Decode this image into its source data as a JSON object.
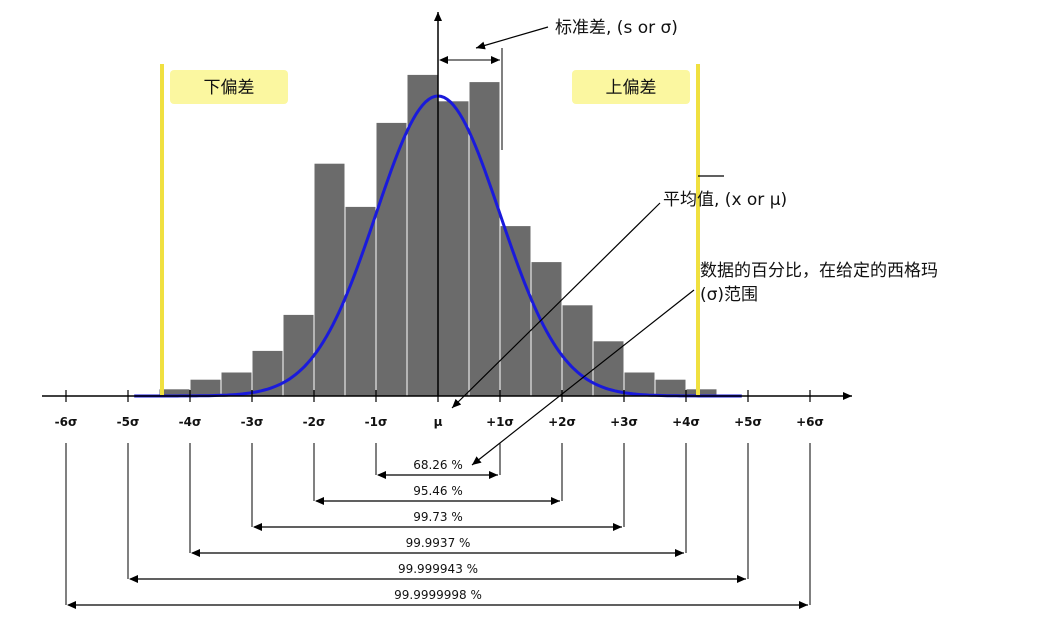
{
  "annotations": {
    "std_dev": "标准差, (s or σ)",
    "mean": "平均值, (x or μ)",
    "percent_line1": "数据的百分比，在给定的西格玛",
    "percent_line2": "(σ)范围"
  },
  "deviation_labels": {
    "lower": "下偏差",
    "upper": "上偏差"
  },
  "axis_ticks": [
    "-6σ",
    "-5σ",
    "-4σ",
    "-3σ",
    "-2σ",
    "-1σ",
    "μ",
    "+1σ",
    "+2σ",
    "+3σ",
    "+4σ",
    "+5σ",
    "+6σ"
  ],
  "coverage": [
    {
      "sigma": 1,
      "label": "68.26 %"
    },
    {
      "sigma": 2,
      "label": "95.46 %"
    },
    {
      "sigma": 3,
      "label": "99.73 %"
    },
    {
      "sigma": 4,
      "label": "99.9937 %"
    },
    {
      "sigma": 5,
      "label": "99.999943 %"
    },
    {
      "sigma": 6,
      "label": "99.9999998 %"
    }
  ],
  "histogram": {
    "sigma_per_bar": 0.5,
    "bar_heights_relative": [
      0.03,
      0.07,
      0.1,
      0.19,
      0.34,
      0.97,
      0.79,
      1.14,
      1.34,
      1.23,
      1.31,
      0.71,
      0.56,
      0.38,
      0.23,
      0.1,
      0.07,
      0.03
    ],
    "bar_start_sigma": -4.5
  },
  "colors": {
    "bar_fill": "#6b6b6b",
    "bar_stroke": "#ffffff",
    "curve": "#1a1adb",
    "spec_line": "#f0e040",
    "label_box": "#fbf7a0",
    "axis": "#000000"
  }
}
